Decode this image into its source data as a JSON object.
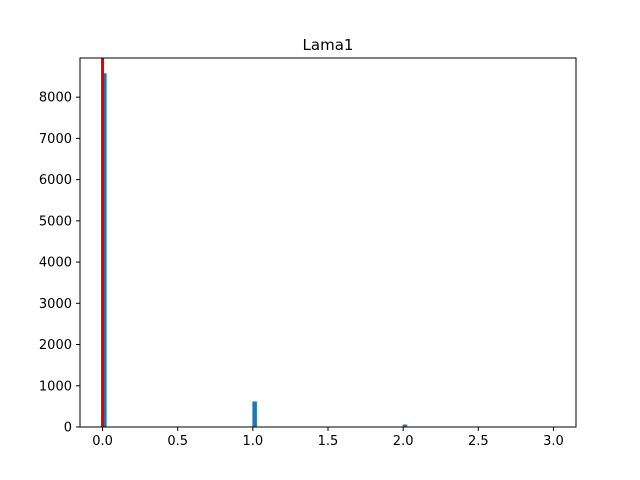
{
  "chart_data": {
    "type": "bar",
    "title": "Lama1",
    "xlabel": "",
    "ylabel": "",
    "xlim": [
      -0.15,
      3.15
    ],
    "ylim": [
      0,
      8950
    ],
    "xticks": [
      0.0,
      0.5,
      1.0,
      1.5,
      2.0,
      2.5,
      3.0
    ],
    "xtick_labels": [
      "0.0",
      "0.5",
      "1.0",
      "1.5",
      "2.0",
      "2.5",
      "3.0"
    ],
    "yticks": [
      0,
      1000,
      2000,
      3000,
      4000,
      5000,
      6000,
      7000,
      8000
    ],
    "ytick_labels": [
      "0",
      "1000",
      "2000",
      "3000",
      "4000",
      "5000",
      "6000",
      "7000",
      "8000"
    ],
    "bin_width": 0.03,
    "bins": [
      {
        "x": 0.0,
        "count": 8580
      },
      {
        "x": 1.0,
        "count": 620
      },
      {
        "x": 2.0,
        "count": 60
      },
      {
        "x": 3.0,
        "count": 5
      }
    ],
    "bar_color": "#1f77b4",
    "vline": {
      "x": 0.0,
      "color": "#e50000"
    },
    "grid": false,
    "legend": "none"
  }
}
